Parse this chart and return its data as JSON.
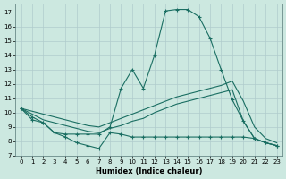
{
  "bg_color": "#cce8e0",
  "line_color": "#1a6e62",
  "grid_color": "#b0cccc",
  "xlabel": "Humidex (Indice chaleur)",
  "xlim": [
    -0.5,
    23.5
  ],
  "ylim": [
    7,
    17.6
  ],
  "xticks": [
    0,
    1,
    2,
    3,
    4,
    5,
    6,
    7,
    8,
    9,
    10,
    11,
    12,
    13,
    14,
    15,
    16,
    17,
    18,
    19,
    20,
    21,
    22,
    23
  ],
  "yticks": [
    7,
    8,
    9,
    10,
    11,
    12,
    13,
    14,
    15,
    16,
    17
  ],
  "line1_x": [
    0,
    1,
    2,
    3,
    4,
    5,
    6,
    7,
    8,
    9,
    10,
    11,
    12,
    13,
    14,
    15,
    16,
    17,
    18,
    19,
    20,
    21,
    22,
    23
  ],
  "line1_y": [
    10.3,
    9.7,
    9.3,
    8.6,
    8.3,
    7.9,
    7.7,
    7.5,
    8.6,
    8.5,
    8.3,
    8.3,
    8.3,
    8.3,
    8.3,
    8.3,
    8.3,
    8.3,
    8.3,
    8.3,
    8.3,
    8.2,
    7.9,
    7.7
  ],
  "line2_x": [
    0,
    1,
    2,
    3,
    4,
    5,
    6,
    7,
    8,
    9,
    10,
    11,
    12,
    13,
    14,
    15,
    16,
    17,
    18,
    19,
    20,
    21,
    22,
    23
  ],
  "line2_y": [
    10.3,
    9.9,
    9.5,
    9.3,
    9.1,
    8.9,
    8.7,
    8.6,
    8.9,
    9.1,
    9.4,
    9.6,
    10.0,
    10.3,
    10.6,
    10.8,
    11.0,
    11.2,
    11.4,
    11.6,
    9.4,
    8.2,
    7.9,
    7.7
  ],
  "line3_x": [
    0,
    1,
    2,
    3,
    4,
    5,
    6,
    7,
    8,
    9,
    10,
    11,
    12,
    13,
    14,
    15,
    16,
    17,
    18,
    19,
    20,
    21,
    22,
    23
  ],
  "line3_y": [
    10.3,
    10.1,
    9.9,
    9.7,
    9.5,
    9.3,
    9.1,
    9.0,
    9.3,
    9.6,
    9.9,
    10.2,
    10.5,
    10.8,
    11.1,
    11.3,
    11.5,
    11.7,
    11.9,
    12.2,
    10.8,
    9.0,
    8.2,
    7.9
  ],
  "line4_x": [
    0,
    1,
    2,
    3,
    4,
    5,
    6,
    7,
    8,
    9,
    10,
    11,
    12,
    13,
    14,
    15,
    16,
    17,
    18,
    19,
    20,
    21,
    22,
    23
  ],
  "line4_y": [
    10.3,
    9.5,
    9.3,
    8.6,
    8.5,
    8.5,
    8.5,
    8.5,
    9.0,
    11.7,
    13.0,
    11.7,
    14.0,
    17.1,
    17.2,
    17.2,
    16.7,
    15.2,
    13.0,
    10.9,
    9.4,
    8.2,
    7.9,
    7.7
  ]
}
